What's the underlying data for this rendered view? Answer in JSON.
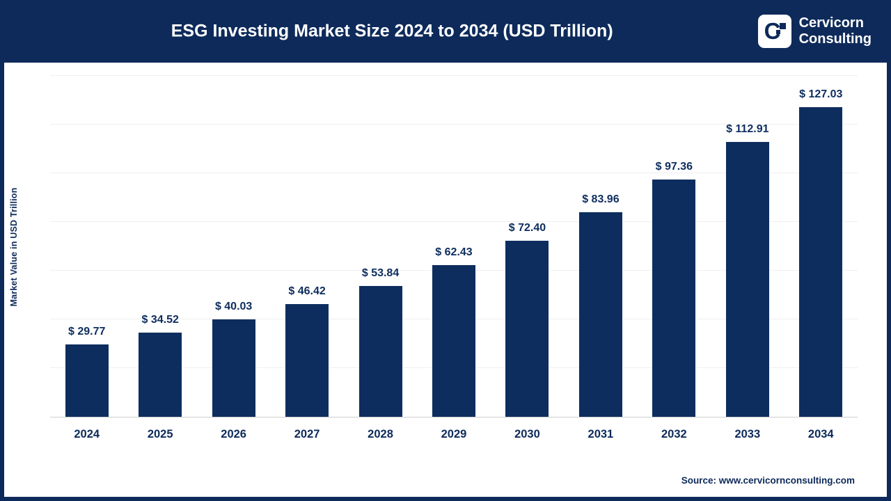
{
  "header": {
    "title": "ESG Investing Market Size 2024 to 2034 (USD Trillion)",
    "logo": {
      "icon": "cervicorn-logo-icon",
      "icon_letter": "C",
      "line1": "Cervicorn",
      "line2": "Consulting"
    }
  },
  "chart_data": {
    "type": "bar",
    "title": "ESG Investing Market Size 2024 to 2034 (USD Trillion)",
    "categories": [
      "2024",
      "2025",
      "2026",
      "2027",
      "2028",
      "2029",
      "2030",
      "2031",
      "2032",
      "2033",
      "2034"
    ],
    "values": [
      29.77,
      34.52,
      40.03,
      46.42,
      53.84,
      62.43,
      72.4,
      83.96,
      97.36,
      112.91,
      127.03
    ],
    "value_prefix": "$ ",
    "xlabel": "",
    "ylabel": "Market Value in USD Trillion",
    "ylim": [
      0,
      140
    ],
    "grid": "horizontal-faint",
    "legend": "none",
    "bar_color": "#0d2d5e"
  },
  "footer": {
    "source": "Source: www.cervicornconsulting.com"
  },
  "colors": {
    "navy": "#0d2a5a",
    "bar": "#0d2d5e",
    "background": "#ffffff",
    "gridline": "#efefef",
    "title_text": "#ffffff"
  }
}
